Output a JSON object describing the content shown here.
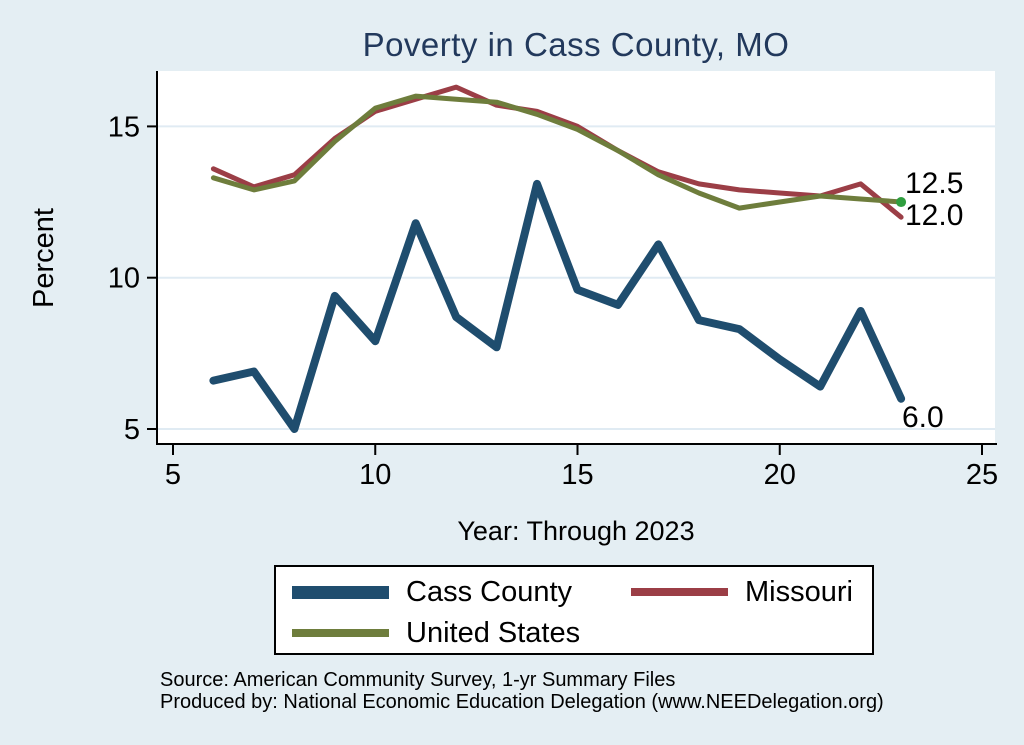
{
  "colors": {
    "background": "#e4eef3",
    "plot_background": "#ffffff",
    "title_text": "#22395c",
    "gridline": "#e0ebf3",
    "axis": "#000000",
    "end_marker": "#2f9e3f",
    "label_text": "#000000"
  },
  "chart_data": {
    "type": "line",
    "title": "Poverty in Cass County, MO",
    "xlabel": "Year: Through 2023",
    "ylabel": "Percent",
    "x": [
      6,
      7,
      8,
      9,
      10,
      11,
      12,
      13,
      14,
      15,
      16,
      17,
      18,
      19,
      20,
      21,
      22,
      23
    ],
    "series": [
      {
        "name": "Cass County",
        "color": "#1f4d6e",
        "values": [
          6.6,
          6.9,
          5.0,
          9.4,
          7.9,
          11.8,
          8.7,
          7.7,
          13.1,
          9.6,
          9.1,
          11.1,
          8.6,
          8.3,
          7.3,
          6.4,
          8.9,
          6.0
        ]
      },
      {
        "name": "Missouri",
        "color": "#9b3e46",
        "values": [
          13.6,
          13.0,
          13.4,
          14.6,
          15.5,
          15.9,
          16.3,
          15.7,
          15.5,
          15.0,
          14.2,
          13.5,
          13.1,
          12.9,
          12.8,
          12.7,
          13.1,
          12.0
        ]
      },
      {
        "name": "United States",
        "color": "#6e7d3c",
        "values": [
          13.3,
          12.9,
          13.2,
          14.5,
          15.6,
          16.0,
          15.9,
          15.8,
          15.4,
          14.9,
          14.2,
          13.4,
          12.8,
          12.3,
          12.5,
          12.7,
          12.6,
          12.5
        ],
        "end_marker": true
      }
    ],
    "xticks": [
      "5",
      "10",
      "15",
      "20",
      "25"
    ],
    "yticks": [
      "5",
      "10",
      "15"
    ],
    "xlim": [
      4.6,
      25.3
    ],
    "ylim": [
      4.5,
      16.8
    ],
    "grid": "horizontal gridlines at y ticks",
    "legend_position": "below chart",
    "end_labels": [
      "12.5",
      "12.0",
      "6.0"
    ]
  },
  "legend": {
    "items": [
      {
        "label": "Cass County",
        "color": "#1f4d6e"
      },
      {
        "label": "Missouri",
        "color": "#9b3e46"
      },
      {
        "label": "United States",
        "color": "#6e7d3c"
      }
    ]
  },
  "source": {
    "line1": "Source: American Community Survey, 1-yr Summary Files",
    "line2": "Produced by: National Economic Education Delegation (www.NEEDelegation.org)"
  }
}
